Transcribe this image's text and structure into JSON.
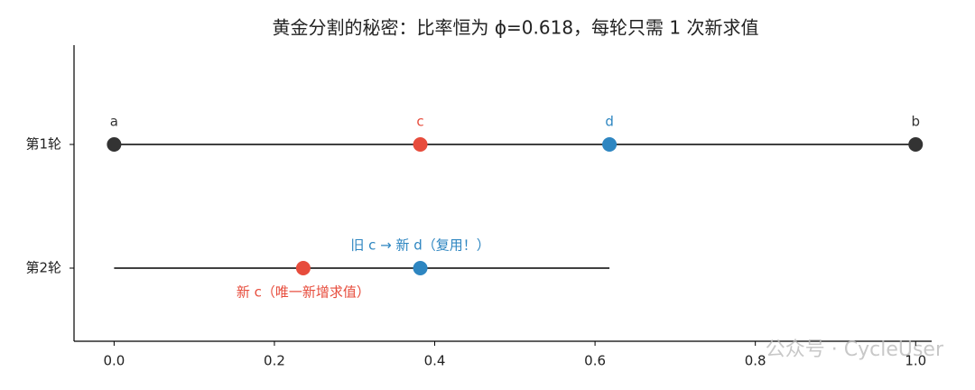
{
  "chart_data": {
    "type": "dot",
    "title": "黄金分割的秘密：比率恒为 ϕ=0.618，每轮只需 1 次新求值",
    "watermark": "公众号 · CycleUser",
    "line_color": "#000000",
    "rows": [
      {
        "name": "第1轮",
        "range": [
          0,
          1
        ],
        "points": [
          {
            "label": "a",
            "x": 0,
            "color": "#333333"
          },
          {
            "label": "c",
            "x": 0.382,
            "color": "#e74c3c"
          },
          {
            "label": "d",
            "x": 0.618,
            "color": "#2e86c1"
          },
          {
            "label": "b",
            "x": 1,
            "color": "#333333"
          }
        ]
      },
      {
        "name": "第2轮",
        "range": [
          0,
          0.618
        ],
        "points": [
          {
            "label": "新 c（唯一新增求值）",
            "x": 0.236,
            "color": "#e74c3c"
          },
          {
            "label": "旧 c → 新 d（复用！）",
            "x": 0.382,
            "color": "#2e86c1"
          }
        ]
      }
    ],
    "xlim": [
      -0.05,
      1.02
    ],
    "xticks": [
      {
        "value": 0,
        "label": "0.0"
      },
      0.2,
      0.4,
      0.6,
      0.8,
      {
        "value": 1,
        "label": "1.0"
      }
    ]
  }
}
